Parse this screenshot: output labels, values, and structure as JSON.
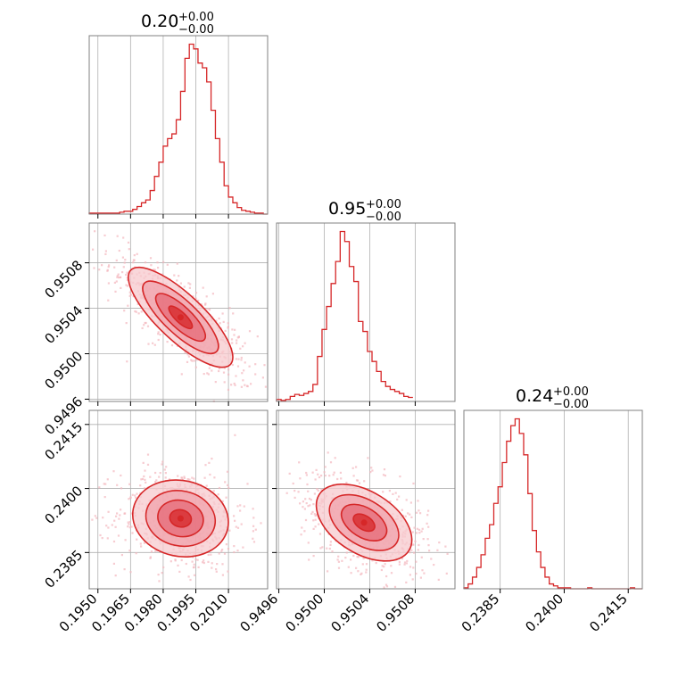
{
  "figure": {
    "type": "corner-plot",
    "color": "#d62728",
    "grid": true
  },
  "chart_data": [
    {
      "type": "histogram",
      "panel": "hist-0",
      "parameter_index": 0,
      "title": {
        "value": "0.20",
        "plus": "+0.00",
        "minus": "−0.00"
      },
      "xlim": [
        0.1946,
        0.2028
      ],
      "bin_edges_start": 0.1946,
      "bin_width": 0.0002,
      "counts": [
        1,
        1,
        1,
        1,
        1,
        1,
        1,
        2,
        3,
        3,
        5,
        8,
        12,
        15,
        25,
        40,
        55,
        72,
        80,
        85,
        100,
        130,
        165,
        180,
        175,
        160,
        155,
        140,
        110,
        80,
        55,
        30,
        18,
        12,
        7,
        4,
        3,
        2,
        1,
        1,
        0
      ]
    },
    {
      "type": "histogram",
      "panel": "hist-1",
      "parameter_index": 1,
      "title": {
        "value": "0.95",
        "plus": "+0.00",
        "minus": "−0.00"
      },
      "xlim": [
        0.94958,
        0.95115
      ],
      "bin_edges_start": 0.94958,
      "bin_width": 4e-05,
      "counts": [
        2,
        1,
        2,
        5,
        7,
        6,
        8,
        10,
        17,
        45,
        72,
        95,
        118,
        140,
        170,
        160,
        135,
        120,
        80,
        70,
        50,
        40,
        30,
        20,
        15,
        12,
        10,
        8,
        5,
        4
      ]
    },
    {
      "type": "histogram",
      "panel": "hist-2",
      "parameter_index": 2,
      "title": {
        "value": "0.24",
        "plus": "+0.00",
        "minus": "−0.00"
      },
      "xlim": [
        0.23765,
        0.24183
      ],
      "bin_edges_start": 0.23765,
      "bin_width": 0.0001,
      "counts": [
        1,
        5,
        12,
        22,
        35,
        52,
        66,
        88,
        105,
        130,
        152,
        168,
        175,
        160,
        138,
        98,
        60,
        38,
        22,
        12,
        5,
        3,
        1,
        1,
        1,
        0,
        0,
        0,
        0,
        1,
        0,
        0,
        0,
        0,
        0,
        0,
        0,
        0,
        0,
        1,
        0,
        0
      ]
    },
    {
      "type": "contour",
      "panel": "contour-1-0",
      "x_parameter": 0,
      "y_parameter": 1,
      "xlim": [
        0.1946,
        0.2028
      ],
      "ylim": [
        0.94958,
        0.95115
      ],
      "center": [
        0.1988,
        0.95032
      ],
      "sigma": [
        0.0012,
        0.00022
      ],
      "correlation": -0.8
    },
    {
      "type": "contour",
      "panel": "contour-2-0",
      "x_parameter": 0,
      "y_parameter": 2,
      "xlim": [
        0.1946,
        0.2028
      ],
      "ylim": [
        0.23765,
        0.24183
      ],
      "center": [
        0.1988,
        0.2393
      ],
      "sigma": [
        0.0011,
        0.00045
      ],
      "correlation": -0.1
    },
    {
      "type": "contour",
      "panel": "contour-2-1",
      "x_parameter": 1,
      "y_parameter": 2,
      "xlim": [
        0.94958,
        0.95115
      ],
      "ylim": [
        0.23765,
        0.24183
      ],
      "center": [
        0.95035,
        0.2392
      ],
      "sigma": [
        0.00021,
        0.00045
      ],
      "correlation": -0.45
    }
  ],
  "axes": {
    "x0_ticks": [
      {
        "value": 0.195,
        "label": "0.1950"
      },
      {
        "value": 0.1965,
        "label": "0.1965"
      },
      {
        "value": 0.198,
        "label": "0.1980"
      },
      {
        "value": 0.1995,
        "label": "0.1995"
      },
      {
        "value": 0.201,
        "label": "0.2010"
      }
    ],
    "x1_ticks": [
      {
        "value": 0.9496,
        "label": "0.9496"
      },
      {
        "value": 0.95,
        "label": "0.9500"
      },
      {
        "value": 0.9504,
        "label": "0.9504"
      },
      {
        "value": 0.9508,
        "label": "0.9508"
      }
    ],
    "x2_ticks": [
      {
        "value": 0.2385,
        "label": "0.2385"
      },
      {
        "value": 0.24,
        "label": "0.2400"
      },
      {
        "value": 0.2415,
        "label": "0.2415"
      }
    ],
    "y1_ticks": [
      {
        "value": 0.9496,
        "label": "0.9496"
      },
      {
        "value": 0.95,
        "label": "0.9500"
      },
      {
        "value": 0.9504,
        "label": "0.9504"
      },
      {
        "value": 0.9508,
        "label": "0.9508"
      }
    ],
    "y2_ticks": [
      {
        "value": 0.2385,
        "label": "0.2385"
      },
      {
        "value": 0.24,
        "label": "0.2400"
      },
      {
        "value": 0.2415,
        "label": "0.2415"
      }
    ]
  }
}
